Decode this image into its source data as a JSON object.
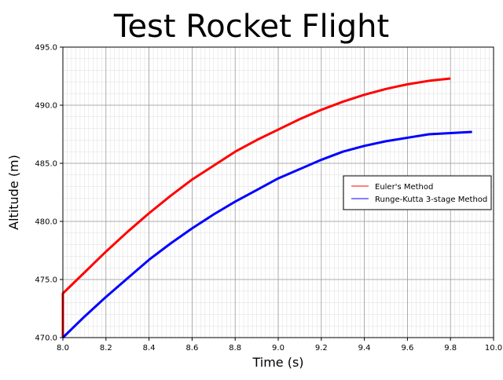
{
  "chart_data": {
    "type": "line",
    "title": "Test Rocket Flight",
    "xlabel": "Time (s)",
    "ylabel": "Altitude (m)",
    "xlim": [
      8.0,
      10.0
    ],
    "ylim": [
      470.0,
      495.0
    ],
    "x_ticks": [
      "8.0",
      "8.2",
      "8.4",
      "8.6",
      "8.8",
      "9.0",
      "9.2",
      "9.4",
      "9.6",
      "9.8",
      "10.0"
    ],
    "y_ticks": [
      "470.0",
      "475.0",
      "480.0",
      "485.0",
      "490.0",
      "495.0"
    ],
    "grid": true,
    "minor_grid": true,
    "legend_position": "center-right",
    "series": [
      {
        "name": "Euler's Method",
        "color": "#ff0000",
        "x": [
          8.0,
          8.0,
          8.1,
          8.2,
          8.3,
          8.4,
          8.5,
          8.6,
          8.7,
          8.8,
          8.9,
          9.0,
          9.1,
          9.2,
          9.3,
          9.4,
          9.5,
          9.6,
          9.7,
          9.8
        ],
        "y": [
          470.0,
          473.8,
          475.6,
          477.4,
          479.1,
          480.7,
          482.2,
          483.6,
          484.8,
          486.0,
          487.0,
          487.9,
          488.8,
          489.6,
          490.3,
          490.9,
          491.4,
          491.8,
          492.1,
          492.3
        ]
      },
      {
        "name": "Runge-Kutta 3-stage Method",
        "color": "#0000ff",
        "x": [
          8.0,
          8.1,
          8.2,
          8.3,
          8.4,
          8.5,
          8.6,
          8.7,
          8.8,
          8.9,
          9.0,
          9.1,
          9.2,
          9.3,
          9.4,
          9.5,
          9.6,
          9.7,
          9.8,
          9.9
        ],
        "y": [
          470.0,
          471.8,
          473.5,
          475.1,
          476.7,
          478.1,
          479.4,
          480.6,
          481.7,
          482.7,
          483.7,
          484.5,
          485.3,
          486.0,
          486.5,
          486.9,
          487.2,
          487.5,
          487.6,
          487.7
        ]
      }
    ]
  }
}
